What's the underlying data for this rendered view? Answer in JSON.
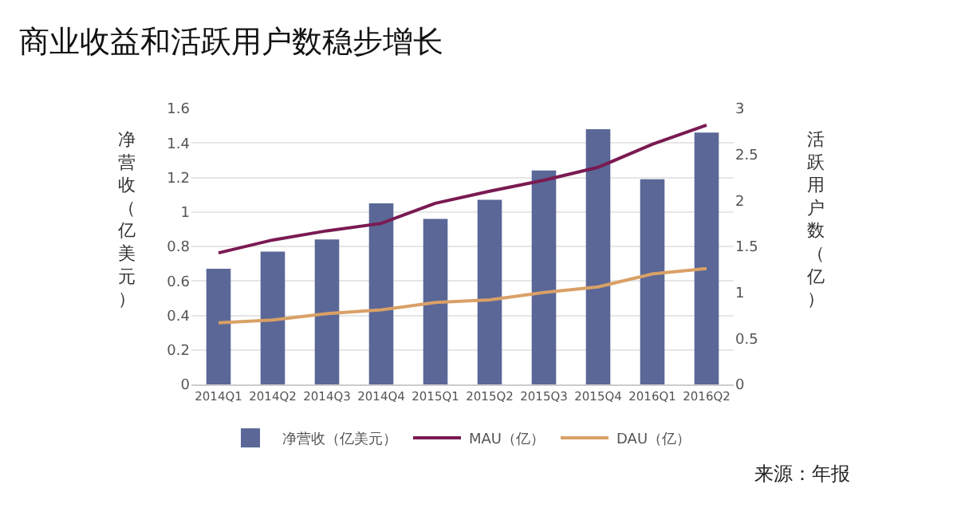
{
  "chart_data": {
    "type": "bar",
    "title": "商业收益和活跃用户数稳步增长",
    "ylabel": "净营收（亿美元）",
    "y2label": "活跃用户数（亿）",
    "categories": [
      "2014Q1",
      "2014Q2",
      "2014Q3",
      "2014Q4",
      "2015Q1",
      "2015Q2",
      "2015Q3",
      "2015Q4",
      "2016Q1",
      "2016Q2"
    ],
    "series": [
      {
        "name": "净营收（亿美元）",
        "color": "#5a6797",
        "values": [
          0.67,
          0.77,
          0.84,
          1.05,
          0.96,
          1.07,
          1.24,
          1.48,
          1.19,
          1.46
        ]
      },
      {
        "name": "MAU（亿）",
        "type": "line",
        "axis": "y2",
        "color": "#7a1a52",
        "values": [
          1.43,
          1.57,
          1.67,
          1.75,
          1.97,
          2.1,
          2.22,
          2.36,
          2.61,
          2.82
        ]
      },
      {
        "name": "DAU（亿）",
        "type": "line",
        "axis": "y2",
        "color": "#d9a066",
        "values": [
          0.67,
          0.7,
          0.77,
          0.81,
          0.89,
          0.92,
          1.0,
          1.06,
          1.2,
          1.26
        ]
      }
    ],
    "ylim": [
      0,
      1.6
    ],
    "yticks": [
      0,
      0.2,
      0.4,
      0.6,
      0.8,
      1,
      1.2,
      1.4,
      1.6
    ],
    "y2lim": [
      0,
      3
    ],
    "y2ticks": [
      0,
      0.5,
      1,
      1.5,
      2,
      2.5,
      3
    ],
    "grid": "y",
    "legend": "bottom",
    "marker": "none",
    "line_style": "solid",
    "annotations": [
      "来源：年报"
    ]
  }
}
